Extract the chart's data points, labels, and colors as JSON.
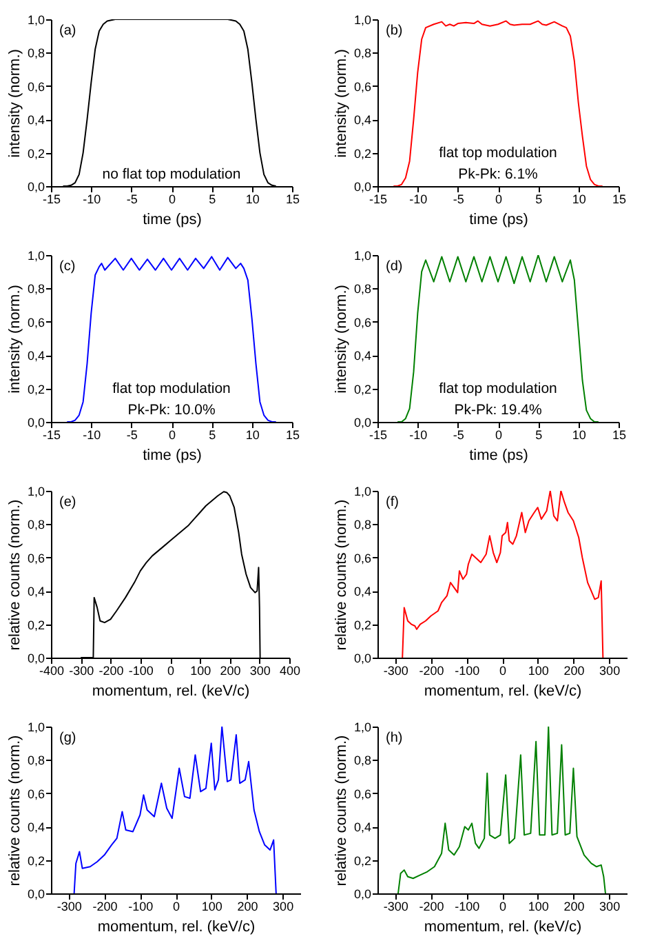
{
  "chart_data": [
    {
      "type": "line",
      "xlabel": "time (ps)",
      "ylabel": "intensity (norm.)",
      "annotations": [
        "(a)",
        "no flat top modulation"
      ],
      "xlim": [
        -15,
        15
      ],
      "xticks": [
        -15,
        -10,
        -5,
        0,
        5,
        10,
        15
      ],
      "ylim": [
        0,
        1
      ],
      "yticks": [
        {
          "value": 0,
          "label": "0,0"
        },
        {
          "value": 0.2,
          "label": "0,2"
        },
        {
          "value": 0.4,
          "label": "0,4"
        },
        {
          "value": 0.6,
          "label": "0,6"
        },
        {
          "value": 0.8,
          "label": "0,8"
        },
        {
          "value": 1,
          "label": "1,0"
        }
      ],
      "x": [
        -13.5,
        -13,
        -12.5,
        -12,
        -11.5,
        -11,
        -10.5,
        -10,
        -9.5,
        -9,
        -8.5,
        -8,
        -7,
        -4,
        0,
        4,
        7,
        8,
        8.5,
        9,
        9.5,
        10,
        10.5,
        11,
        11.5,
        12,
        12.5,
        13
      ],
      "series": [
        {
          "color": "#000000",
          "values": [
            0,
            0,
            0.005,
            0.02,
            0.07,
            0.2,
            0.4,
            0.62,
            0.82,
            0.93,
            0.97,
            0.99,
            1,
            1,
            1,
            1,
            1,
            0.99,
            0.97,
            0.93,
            0.82,
            0.62,
            0.4,
            0.2,
            0.07,
            0.02,
            0.005,
            0
          ]
        }
      ]
    },
    {
      "type": "line",
      "xlabel": "time (ps)",
      "ylabel": "intensity (norm.)",
      "annotations": [
        "(b)",
        "flat top modulation",
        "Pk-Pk: 6.1%"
      ],
      "xlim": [
        -15,
        15
      ],
      "xticks": [
        -15,
        -10,
        -5,
        0,
        5,
        10,
        15
      ],
      "ylim": [
        0,
        1
      ],
      "yticks": [
        {
          "value": 0,
          "label": "0,0"
        },
        {
          "value": 0.2,
          "label": "0,2"
        },
        {
          "value": 0.4,
          "label": "0,4"
        },
        {
          "value": 0.6,
          "label": "0,6"
        },
        {
          "value": 0.8,
          "label": "0,8"
        },
        {
          "value": 1,
          "label": "1,0"
        }
      ],
      "x": [
        -13,
        -12.5,
        -12,
        -11.5,
        -11,
        -10.5,
        -10,
        -9.5,
        -9,
        -8,
        -7,
        -6.5,
        -6,
        -5.5,
        -5,
        -4,
        -3,
        -2.5,
        -2,
        -1,
        0,
        1,
        1.5,
        2,
        3,
        4,
        5,
        5.5,
        6,
        7,
        8,
        8.5,
        9,
        9.5,
        10,
        10.5,
        11,
        11.5,
        12,
        12.5,
        13
      ],
      "series": [
        {
          "color": "#ff0000",
          "values": [
            0,
            0,
            0.01,
            0.05,
            0.15,
            0.4,
            0.68,
            0.88,
            0.95,
            0.97,
            0.985,
            0.96,
            0.97,
            0.96,
            0.975,
            0.98,
            0.975,
            0.99,
            0.97,
            0.96,
            0.97,
            0.99,
            0.97,
            0.965,
            0.97,
            0.97,
            0.99,
            0.97,
            0.965,
            0.985,
            0.96,
            0.95,
            0.9,
            0.75,
            0.5,
            0.3,
            0.12,
            0.04,
            0.01,
            0,
            0
          ]
        }
      ]
    },
    {
      "type": "line",
      "xlabel": "time (ps)",
      "ylabel": "intensity (norm.)",
      "annotations": [
        "(c)",
        "flat top modulation",
        "Pk-Pk: 10.0%"
      ],
      "xlim": [
        -15,
        15
      ],
      "xticks": [
        -15,
        -10,
        -5,
        0,
        5,
        10,
        15
      ],
      "ylim": [
        0,
        1
      ],
      "yticks": [
        {
          "value": 0,
          "label": "0,0"
        },
        {
          "value": 0.2,
          "label": "0,2"
        },
        {
          "value": 0.4,
          "label": "0,4"
        },
        {
          "value": 0.6,
          "label": "0,6"
        },
        {
          "value": 0.8,
          "label": "0,8"
        },
        {
          "value": 1,
          "label": "1,0"
        }
      ],
      "x": [
        -13,
        -12.5,
        -12,
        -11.5,
        -11,
        -10.5,
        -10,
        -9.5,
        -9,
        -8.7,
        -8.3,
        -7,
        -6,
        -5,
        -4,
        -3,
        -2,
        -1,
        0,
        1,
        2,
        3,
        4,
        5,
        6,
        7,
        8,
        8.6,
        9,
        9.5,
        10,
        10.5,
        11,
        11.5,
        12,
        12.5,
        13
      ],
      "series": [
        {
          "color": "#0000ff",
          "values": [
            0,
            0,
            0.01,
            0.04,
            0.12,
            0.35,
            0.65,
            0.88,
            0.93,
            0.95,
            0.91,
            0.98,
            0.91,
            0.98,
            0.91,
            0.975,
            0.91,
            0.98,
            0.91,
            0.98,
            0.91,
            0.98,
            0.92,
            0.99,
            0.91,
            0.985,
            0.92,
            0.95,
            0.92,
            0.85,
            0.62,
            0.35,
            0.12,
            0.04,
            0.01,
            0,
            0
          ]
        }
      ]
    },
    {
      "type": "line",
      "xlabel": "time (ps)",
      "ylabel": "intensity (norm.)",
      "annotations": [
        "(d)",
        "flat top modulation",
        "Pk-Pk: 19.4%"
      ],
      "xlim": [
        -15,
        15
      ],
      "xticks": [
        -15,
        -10,
        -5,
        0,
        5,
        10,
        15
      ],
      "ylim": [
        0,
        1
      ],
      "yticks": [
        {
          "value": 0,
          "label": "0,0"
        },
        {
          "value": 0.2,
          "label": "0,2"
        },
        {
          "value": 0.4,
          "label": "0,4"
        },
        {
          "value": 0.6,
          "label": "0,6"
        },
        {
          "value": 0.8,
          "label": "0,8"
        },
        {
          "value": 1,
          "label": "1,0"
        }
      ],
      "x": [
        -12.5,
        -12,
        -11.5,
        -11,
        -10.5,
        -10,
        -9.5,
        -9,
        -8,
        -7,
        -6,
        -5,
        -4,
        -3,
        -2,
        -1,
        0,
        1,
        2,
        3,
        4,
        5,
        6,
        7,
        8,
        9,
        9.5,
        10,
        10.5,
        11,
        11.5,
        12,
        12.5
      ],
      "series": [
        {
          "color": "#008000",
          "values": [
            0,
            0,
            0.02,
            0.08,
            0.3,
            0.65,
            0.9,
            0.97,
            0.84,
            0.99,
            0.84,
            0.99,
            0.84,
            0.99,
            0.84,
            0.99,
            0.84,
            0.99,
            0.83,
            0.99,
            0.84,
            1,
            0.84,
            0.99,
            0.84,
            0.97,
            0.85,
            0.55,
            0.25,
            0.07,
            0.02,
            0,
            0
          ]
        }
      ]
    },
    {
      "type": "line",
      "xlabel": "momentum, rel. (keV/c)",
      "ylabel": "relative counts (norm.)",
      "annotations": [
        "(e)"
      ],
      "xlim": [
        -400,
        400
      ],
      "xticks": [
        -400,
        -300,
        -200,
        -100,
        0,
        100,
        200,
        300,
        400
      ],
      "ylim": [
        0,
        1
      ],
      "yticks": [
        {
          "value": 0,
          "label": "0,0"
        },
        {
          "value": 0.2,
          "label": "0,2"
        },
        {
          "value": 0.4,
          "label": "0,4"
        },
        {
          "value": 0.6,
          "label": "0,6"
        },
        {
          "value": 0.8,
          "label": "0,8"
        },
        {
          "value": 1,
          "label": "1,0"
        }
      ],
      "x": [
        -300,
        -258,
        -255,
        -245,
        -235,
        -220,
        -200,
        -180,
        -150,
        -120,
        -100,
        -80,
        -60,
        -40,
        -20,
        0,
        20,
        40,
        60,
        80,
        100,
        120,
        140,
        160,
        180,
        190,
        200,
        215,
        230,
        240,
        255,
        270,
        285,
        292,
        297,
        300,
        302
      ],
      "series": [
        {
          "color": "#000000",
          "values": [
            0,
            0,
            0.36,
            0.3,
            0.22,
            0.21,
            0.23,
            0.28,
            0.36,
            0.45,
            0.52,
            0.57,
            0.61,
            0.64,
            0.67,
            0.7,
            0.73,
            0.76,
            0.79,
            0.83,
            0.87,
            0.91,
            0.94,
            0.97,
            0.995,
            0.99,
            0.97,
            0.9,
            0.75,
            0.62,
            0.5,
            0.42,
            0.39,
            0.4,
            0.54,
            0.3,
            0
          ]
        }
      ]
    },
    {
      "type": "line",
      "xlabel": "momentum, rel. (keV/c)",
      "ylabel": "relative counts (norm.)",
      "annotations": [
        "(f)"
      ],
      "xlim": [
        -350,
        350
      ],
      "xticks": [
        -300,
        -200,
        -100,
        0,
        100,
        200,
        300
      ],
      "ylim": [
        0,
        1
      ],
      "yticks": [
        {
          "value": 0,
          "label": "0,0"
        },
        {
          "value": 0.2,
          "label": "0,2"
        },
        {
          "value": 0.4,
          "label": "0,4"
        },
        {
          "value": 0.6,
          "label": "0,6"
        },
        {
          "value": 0.8,
          "label": "0,8"
        },
        {
          "value": 1,
          "label": "1,0"
        }
      ],
      "x": [
        -280,
        -275,
        -265,
        -255,
        -245,
        -240,
        -230,
        -215,
        -200,
        -180,
        -170,
        -155,
        -145,
        -135,
        -125,
        -120,
        -110,
        -100,
        -95,
        -85,
        -75,
        -60,
        -45,
        -35,
        -25,
        -15,
        -5,
        0,
        10,
        15,
        20,
        30,
        40,
        55,
        65,
        75,
        90,
        100,
        110,
        125,
        135,
        145,
        155,
        165,
        175,
        185,
        200,
        215,
        225,
        240,
        250,
        260,
        270,
        278,
        283
      ],
      "series": [
        {
          "color": "#ff0000",
          "values": [
            0,
            0.3,
            0.22,
            0.2,
            0.19,
            0.17,
            0.2,
            0.22,
            0.25,
            0.28,
            0.33,
            0.37,
            0.45,
            0.42,
            0.39,
            0.52,
            0.47,
            0.5,
            0.56,
            0.62,
            0.6,
            0.57,
            0.62,
            0.73,
            0.63,
            0.57,
            0.63,
            0.73,
            0.75,
            0.81,
            0.7,
            0.68,
            0.73,
            0.87,
            0.75,
            0.82,
            0.87,
            0.9,
            0.83,
            0.88,
            1,
            0.85,
            0.82,
            1,
            0.93,
            0.87,
            0.82,
            0.72,
            0.6,
            0.45,
            0.4,
            0.35,
            0.36,
            0.46,
            0
          ]
        }
      ]
    },
    {
      "type": "line",
      "xlabel": "momentum, rel. (keV/c)",
      "ylabel": "relative counts (norm.)",
      "annotations": [
        "(g)"
      ],
      "xlim": [
        -350,
        350
      ],
      "xticks": [
        -300,
        -200,
        -100,
        0,
        100,
        200,
        300
      ],
      "ylim": [
        0,
        1
      ],
      "yticks": [
        {
          "value": 0,
          "label": "0,0"
        },
        {
          "value": 0.2,
          "label": "0,2"
        },
        {
          "value": 0.4,
          "label": "0,4"
        },
        {
          "value": 0.6,
          "label": "0,6"
        },
        {
          "value": 0.8,
          "label": "0,8"
        },
        {
          "value": 1,
          "label": "1,0"
        }
      ],
      "x": [
        -285,
        -280,
        -270,
        -262,
        -240,
        -220,
        -200,
        -180,
        -165,
        -150,
        -140,
        -120,
        -100,
        -90,
        -80,
        -60,
        -40,
        -25,
        -10,
        10,
        25,
        40,
        55,
        70,
        85,
        100,
        110,
        120,
        130,
        145,
        155,
        170,
        180,
        195,
        205,
        220,
        235,
        250,
        265,
        275,
        282
      ],
      "series": [
        {
          "color": "#0000ff",
          "values": [
            0,
            0.18,
            0.25,
            0.15,
            0.16,
            0.19,
            0.23,
            0.29,
            0.33,
            0.49,
            0.38,
            0.37,
            0.47,
            0.59,
            0.5,
            0.46,
            0.66,
            0.51,
            0.45,
            0.75,
            0.58,
            0.57,
            0.83,
            0.61,
            0.63,
            0.9,
            0.62,
            0.68,
            1,
            0.67,
            0.68,
            0.95,
            0.66,
            0.68,
            0.79,
            0.5,
            0.37,
            0.29,
            0.26,
            0.32,
            0
          ]
        }
      ]
    },
    {
      "type": "line",
      "xlabel": "momentum, rel. (keV/c)",
      "ylabel": "relative counts (norm.)",
      "annotations": [
        "(h)"
      ],
      "xlim": [
        -350,
        350
      ],
      "xticks": [
        -300,
        -200,
        -100,
        0,
        100,
        200,
        300
      ],
      "ylim": [
        0,
        1
      ],
      "yticks": [
        {
          "value": 0,
          "label": "0,0"
        },
        {
          "value": 0.2,
          "label": "0,2"
        },
        {
          "value": 0.4,
          "label": "0,4"
        },
        {
          "value": 0.6,
          "label": "0,6"
        },
        {
          "value": 0.8,
          "label": "0,8"
        },
        {
          "value": 1,
          "label": "1,0"
        }
      ],
      "x": [
        -292,
        -285,
        -275,
        -265,
        -250,
        -230,
        -210,
        -190,
        -170,
        -160,
        -150,
        -135,
        -120,
        -105,
        -95,
        -85,
        -75,
        -65,
        -50,
        -42,
        -35,
        -20,
        -5,
        10,
        20,
        35,
        52,
        62,
        80,
        95,
        105,
        120,
        130,
        140,
        155,
        167,
        177,
        190,
        200,
        210,
        230,
        250,
        265,
        278,
        285,
        290
      ],
      "series": [
        {
          "color": "#008000",
          "values": [
            0,
            0.12,
            0.14,
            0.1,
            0.09,
            0.11,
            0.13,
            0.16,
            0.24,
            0.42,
            0.26,
            0.23,
            0.28,
            0.4,
            0.38,
            0.42,
            0.3,
            0.27,
            0.33,
            0.72,
            0.35,
            0.33,
            0.35,
            0.71,
            0.3,
            0.33,
            0.83,
            0.35,
            0.36,
            0.91,
            0.35,
            0.35,
            1,
            0.35,
            0.36,
            0.89,
            0.35,
            0.36,
            0.75,
            0.34,
            0.23,
            0.18,
            0.16,
            0.17,
            0.1,
            0
          ]
        }
      ]
    }
  ]
}
